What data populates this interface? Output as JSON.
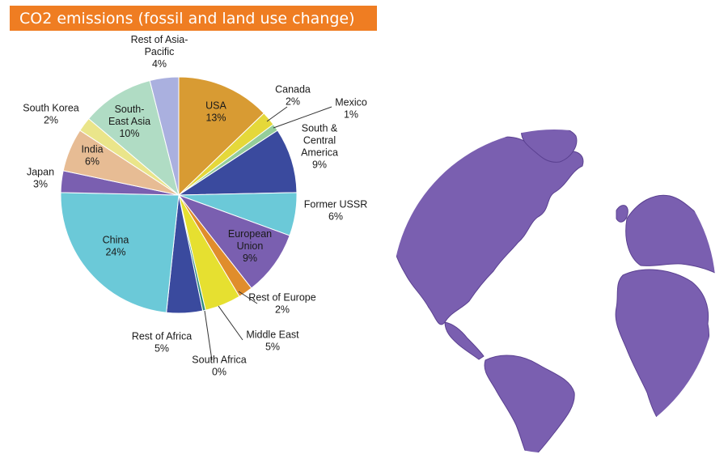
{
  "chart_data": {
    "type": "pie",
    "title": "CO2 emissions (fossil and land use change)",
    "unit": "%",
    "slices": [
      {
        "name": "USA",
        "value": 13,
        "label": "13%",
        "color": "#d89b33"
      },
      {
        "name": "Canada",
        "value": 2,
        "label": "2%",
        "color": "#e5d83a"
      },
      {
        "name": "Mexico",
        "value": 1,
        "label": "1%",
        "color": "#94cd9a"
      },
      {
        "name": "South & Central America",
        "value": 9,
        "label": "9%",
        "color": "#3a4a9e"
      },
      {
        "name": "Former USSR",
        "value": 6,
        "label": "6%",
        "color": "#6bc9d8"
      },
      {
        "name": "European Union",
        "value": 9,
        "label": "9%",
        "color": "#7a5fb0"
      },
      {
        "name": "Rest of Europe",
        "value": 2,
        "label": "2%",
        "color": "#e08d2c"
      },
      {
        "name": "Middle East",
        "value": 5,
        "label": "5%",
        "color": "#e6e030"
      },
      {
        "name": "South Africa",
        "value": 0.4,
        "label": "0%",
        "color": "#2e8b7c"
      },
      {
        "name": "Rest of Africa",
        "value": 5,
        "label": "5%",
        "color": "#3a4a9e"
      },
      {
        "name": "China",
        "value": 24,
        "label": "24%",
        "color": "#6bc9d8"
      },
      {
        "name": "Japan",
        "value": 3,
        "label": "3%",
        "color": "#7a5fb0"
      },
      {
        "name": "India",
        "value": 6,
        "label": "6%",
        "color": "#e7bc94"
      },
      {
        "name": "South Korea",
        "value": 2,
        "label": "2%",
        "color": "#eae58a"
      },
      {
        "name": "South-East Asia",
        "value": 10,
        "label": "10%",
        "color": "#b0dcc4"
      },
      {
        "name": "Rest of Asia-Pacific",
        "value": 4,
        "label": "4%",
        "color": "#aab0df"
      }
    ]
  },
  "colors": {
    "title_bar": "#ef7d22",
    "globe_land": "#7a5fb0"
  },
  "icons": {
    "globe": "world-globe-icon"
  }
}
